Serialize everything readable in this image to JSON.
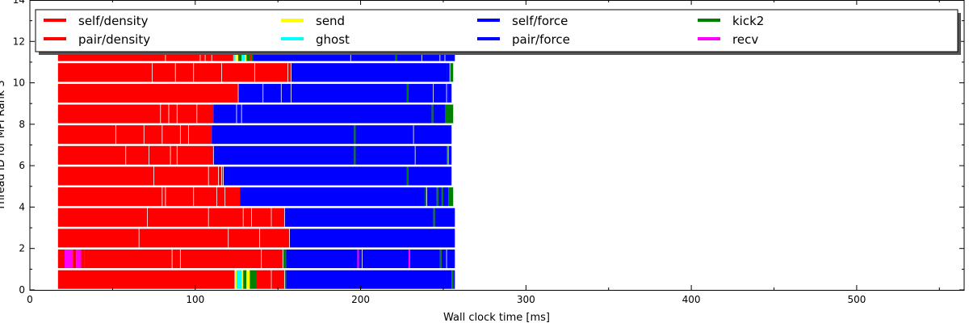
{
  "chart_data": {
    "type": "bar",
    "orientation": "horizontal-timeline",
    "title": "",
    "xlabel": "Wall clock time [ms]",
    "ylabel": "Thread ID for MPI Rank 3",
    "xlim": [
      0,
      565
    ],
    "ylim": [
      0,
      14
    ],
    "xticks": [
      0,
      100,
      200,
      300,
      400,
      500
    ],
    "yticks": [
      0,
      2,
      4,
      6,
      8,
      10,
      12,
      14
    ],
    "grid": false,
    "legend_position": "top",
    "legend": [
      {
        "name": "self/density",
        "color": "#ff0000"
      },
      {
        "name": "pair/density",
        "color": "#ff0000"
      },
      {
        "name": "send",
        "color": "#ffff00"
      },
      {
        "name": "ghost",
        "color": "#00ffff"
      },
      {
        "name": "self/force",
        "color": "#0000ff"
      },
      {
        "name": "pair/force",
        "color": "#0000ff"
      },
      {
        "name": "kick2",
        "color": "#008000"
      },
      {
        "name": "recv",
        "color": "#ff00ff"
      }
    ],
    "colors": {
      "density": "#ff0000",
      "force": "#0000ff",
      "send": "#ffff00",
      "ghost": "#00ffff",
      "kick2": "#008000",
      "recv": "#ff00ff"
    },
    "threads": [
      {
        "thread": 0,
        "segments": [
          [
            17,
            124,
            "density"
          ],
          [
            124,
            125,
            "send"
          ],
          [
            125,
            128,
            "ghost"
          ],
          [
            128,
            129,
            "send"
          ],
          [
            129,
            131,
            "kick2"
          ],
          [
            131,
            133,
            "send"
          ],
          [
            133,
            137,
            "kick2"
          ],
          [
            137,
            154,
            "density"
          ],
          [
            154,
            155,
            "kick2"
          ],
          [
            155,
            255,
            "force"
          ],
          [
            255,
            256,
            "kick2"
          ],
          [
            256,
            257,
            "force"
          ]
        ],
        "dividers": [
          124,
          146,
          154
        ]
      },
      {
        "thread": 1,
        "segments": [
          [
            17,
            21,
            "density"
          ],
          [
            21,
            26,
            "recv"
          ],
          [
            26,
            28,
            "density"
          ],
          [
            28,
            31,
            "recv"
          ],
          [
            31,
            33,
            "density"
          ],
          [
            33,
            153,
            "density"
          ],
          [
            153,
            155,
            "kick2"
          ],
          [
            155,
            198,
            "force"
          ],
          [
            198,
            199,
            "recv"
          ],
          [
            199,
            229,
            "force"
          ],
          [
            229,
            230,
            "recv"
          ],
          [
            230,
            248,
            "force"
          ],
          [
            248,
            249,
            "kick2"
          ],
          [
            249,
            257,
            "force"
          ]
        ],
        "dividers": [
          86,
          91,
          140,
          153,
          201,
          252
        ]
      },
      {
        "thread": 2,
        "segments": [
          [
            17,
            157,
            "density"
          ],
          [
            157,
            257,
            "force"
          ]
        ],
        "dividers": [
          66,
          120,
          139,
          157
        ]
      },
      {
        "thread": 3,
        "segments": [
          [
            17,
            154,
            "density"
          ],
          [
            154,
            244,
            "force"
          ],
          [
            244,
            245,
            "kick2"
          ],
          [
            245,
            257,
            "force"
          ]
        ],
        "dividers": [
          71,
          108,
          129,
          134,
          146,
          154
        ]
      },
      {
        "thread": 4,
        "segments": [
          [
            17,
            127,
            "density"
          ],
          [
            127,
            239,
            "force"
          ],
          [
            239,
            240,
            "kick2"
          ],
          [
            240,
            246,
            "force"
          ],
          [
            246,
            247,
            "kick2"
          ],
          [
            247,
            249,
            "force"
          ],
          [
            249,
            250,
            "kick2"
          ],
          [
            250,
            253,
            "force"
          ],
          [
            253,
            256,
            "kick2"
          ]
        ],
        "dividers": [
          80,
          82,
          99,
          113,
          118,
          240
        ]
      },
      {
        "thread": 5,
        "segments": [
          [
            17,
            117,
            "density"
          ],
          [
            117,
            228,
            "force"
          ],
          [
            228,
            229,
            "kick2"
          ],
          [
            229,
            255,
            "force"
          ]
        ],
        "dividers": [
          75,
          108,
          114,
          116,
          117
        ]
      },
      {
        "thread": 6,
        "segments": [
          [
            17,
            111,
            "density"
          ],
          [
            111,
            196,
            "force"
          ],
          [
            196,
            197,
            "kick2"
          ],
          [
            197,
            252,
            "force"
          ],
          [
            252,
            253,
            "kick2"
          ],
          [
            253,
            255,
            "force"
          ]
        ],
        "dividers": [
          58,
          72,
          85,
          89,
          111,
          233,
          253
        ]
      },
      {
        "thread": 7,
        "segments": [
          [
            17,
            110,
            "density"
          ],
          [
            110,
            196,
            "force"
          ],
          [
            196,
            197,
            "kick2"
          ],
          [
            197,
            255,
            "force"
          ]
        ],
        "dividers": [
          52,
          69,
          80,
          91,
          96,
          232
        ]
      },
      {
        "thread": 8,
        "segments": [
          [
            17,
            111,
            "density"
          ],
          [
            111,
            243,
            "force"
          ],
          [
            243,
            244,
            "kick2"
          ],
          [
            244,
            251,
            "force"
          ],
          [
            251,
            252,
            "kick2"
          ],
          [
            252,
            256,
            "kick2"
          ]
        ],
        "dividers": [
          79,
          84,
          89,
          101,
          125,
          128
        ]
      },
      {
        "thread": 9,
        "segments": [
          [
            17,
            126,
            "density"
          ],
          [
            126,
            228,
            "force"
          ],
          [
            228,
            229,
            "kick2"
          ],
          [
            229,
            253,
            "force"
          ],
          [
            253,
            255,
            "force"
          ]
        ],
        "dividers": [
          126,
          141,
          152,
          158,
          244,
          252
        ]
      },
      {
        "thread": 10,
        "segments": [
          [
            17,
            158,
            "density"
          ],
          [
            158,
            252,
            "force"
          ],
          [
            252,
            254,
            "force"
          ],
          [
            254,
            256,
            "kick2"
          ]
        ],
        "dividers": [
          74,
          88,
          99,
          116,
          136,
          156,
          158,
          254
        ]
      },
      {
        "thread": 11,
        "segments": [
          [
            17,
            123,
            "density"
          ],
          [
            123,
            124,
            "ghost"
          ],
          [
            124,
            126,
            "send"
          ],
          [
            126,
            128,
            "kick2"
          ],
          [
            128,
            130,
            "ghost"
          ],
          [
            130,
            131,
            "send"
          ],
          [
            131,
            133,
            "kick2"
          ],
          [
            133,
            134,
            "density"
          ],
          [
            134,
            135,
            "kick2"
          ],
          [
            135,
            221,
            "force"
          ],
          [
            221,
            222,
            "kick2"
          ],
          [
            222,
            257,
            "force"
          ]
        ],
        "dividers": [
          82,
          103,
          106,
          110,
          125,
          194,
          237,
          248,
          251
        ]
      }
    ]
  }
}
